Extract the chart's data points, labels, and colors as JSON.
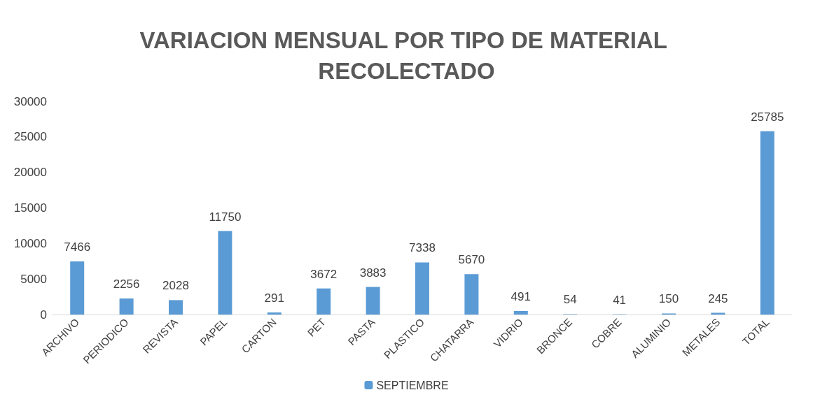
{
  "chart_data": {
    "type": "bar",
    "title": "VARIACION MENSUAL POR TIPO DE MATERIAL RECOLECTADO",
    "categories": [
      "ARCHIVO",
      "PERIODICO",
      "REVISTA",
      "PAPEL",
      "CARTON",
      "PET",
      "PASTA",
      "PLASTICO",
      "CHATARRA",
      "VIDRIO",
      "BRONCE",
      "COBRE",
      "ALUMINIO",
      "METALES",
      "TOTAL"
    ],
    "series": [
      {
        "name": "SEPTIEMBRE",
        "color": "#5b9bd5",
        "values": [
          7466,
          2256,
          2028,
          11750,
          291,
          3672,
          3883,
          7338,
          5670,
          491,
          54,
          41,
          150,
          245,
          25785
        ]
      }
    ],
    "ylim": [
      0,
      30000
    ],
    "yticks": [
      0,
      5000,
      10000,
      15000,
      20000,
      25000,
      30000
    ],
    "grid": false,
    "legend": "bottom",
    "data_labels": true
  }
}
